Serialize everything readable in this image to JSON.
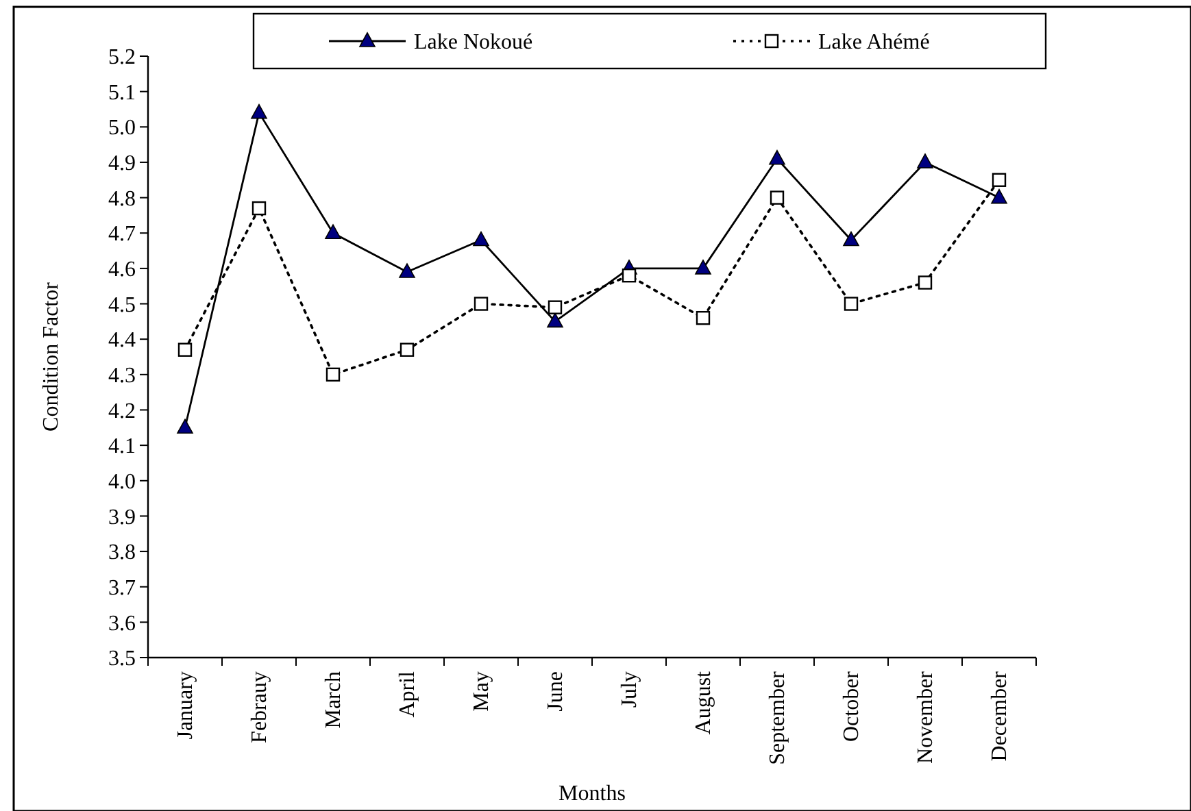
{
  "chart_data": {
    "type": "line",
    "xlabel": "Months",
    "ylabel": "Condition Factor",
    "categories": [
      "January",
      "Febrauy",
      "March",
      "April",
      "May",
      "June",
      "July",
      "August",
      "September",
      "October",
      "November",
      "December"
    ],
    "series": [
      {
        "name": "Lake Nokoué",
        "color": "#000080",
        "marker": "triangle",
        "line_style": "solid",
        "values": [
          4.15,
          5.04,
          4.7,
          4.59,
          4.68,
          4.45,
          4.6,
          4.6,
          4.91,
          4.68,
          4.9,
          4.8
        ]
      },
      {
        "name": "Lake Ahémé",
        "color": "#000000",
        "marker": "square",
        "line_style": "dotted",
        "values": [
          4.37,
          4.77,
          4.3,
          4.37,
          4.5,
          4.49,
          4.58,
          4.46,
          4.8,
          4.5,
          4.56,
          4.85
        ]
      }
    ],
    "ylim": [
      3.5,
      5.2
    ],
    "yticks": [
      {
        "value": 3.5,
        "label": "3.5"
      },
      {
        "value": 3.6,
        "label": "3.6"
      },
      {
        "value": 3.7,
        "label": "3.7"
      },
      {
        "value": 3.8,
        "label": "3.8"
      },
      {
        "value": 3.9,
        "label": "3.9"
      },
      {
        "value": 4.0,
        "label": "4.0"
      },
      {
        "value": 4.1,
        "label": "4.1"
      },
      {
        "value": 4.2,
        "label": "4.2"
      },
      {
        "value": 4.3,
        "label": "4.3"
      },
      {
        "value": 4.4,
        "label": "4.4"
      },
      {
        "value": 4.5,
        "label": "4.5"
      },
      {
        "value": 4.6,
        "label": "4.6"
      },
      {
        "value": 4.7,
        "label": "4.7"
      },
      {
        "value": 4.8,
        "label": "4.8"
      },
      {
        "value": 4.9,
        "label": "4.9"
      },
      {
        "value": 5.0,
        "label": "5.0"
      },
      {
        "value": 5.1,
        "label": "5.1"
      },
      {
        "value": 5.2,
        "label": "5.2"
      }
    ],
    "grid": false,
    "legend": "top"
  }
}
